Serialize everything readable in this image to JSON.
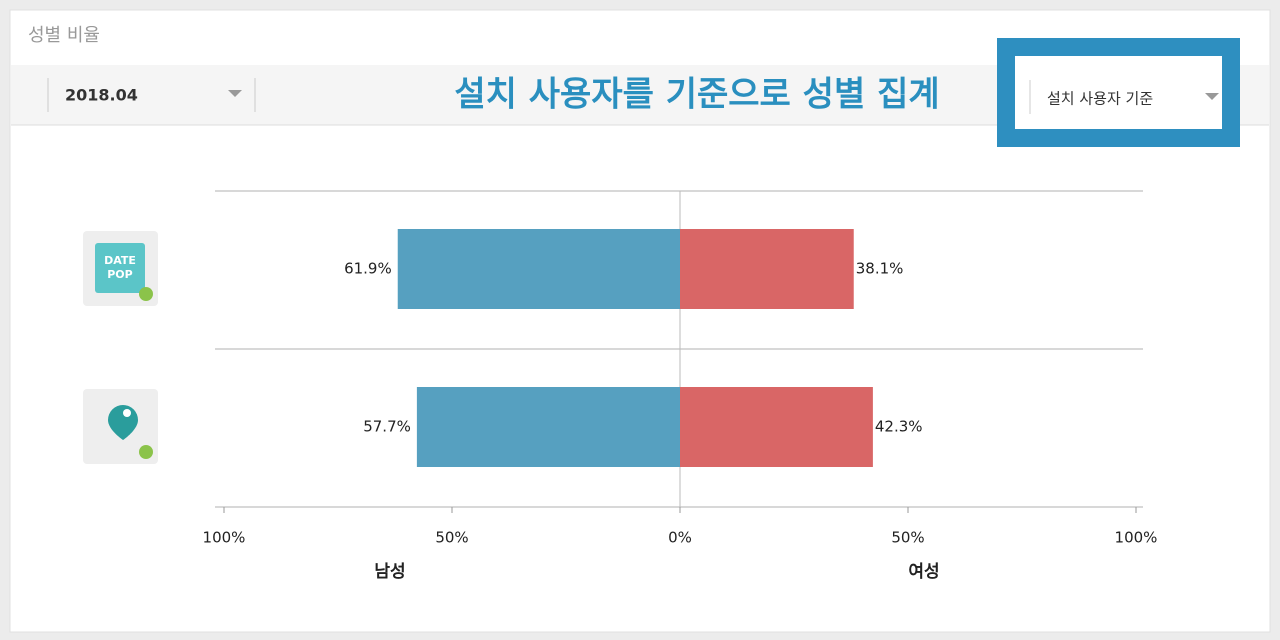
{
  "panel_title": "성별 비율",
  "date_select": "2018.04",
  "annotation": "설치 사용자를 기준으로 성별 집계",
  "basis_select": "설치 사용자 기준",
  "chart_data": {
    "type": "butterfly-bar",
    "categories": [
      null,
      null
    ],
    "series": [
      {
        "name": "남성",
        "color": "#56a0c0",
        "values": [
          61.9,
          57.7
        ],
        "value_labels": [
          "61.9%",
          "57.7%"
        ]
      },
      {
        "name": "여성",
        "color": "#d96666",
        "values": [
          38.1,
          42.3
        ],
        "value_labels": [
          "38.1%",
          "42.3%"
        ]
      }
    ],
    "xlim": [
      -100,
      100
    ],
    "xticks": [
      {
        "value": -100,
        "label": "100%"
      },
      {
        "value": -50,
        "label": "50%"
      },
      {
        "value": 0,
        "label": "0%"
      },
      {
        "value": 50,
        "label": "50%"
      },
      {
        "value": 100,
        "label": "100%"
      }
    ]
  }
}
